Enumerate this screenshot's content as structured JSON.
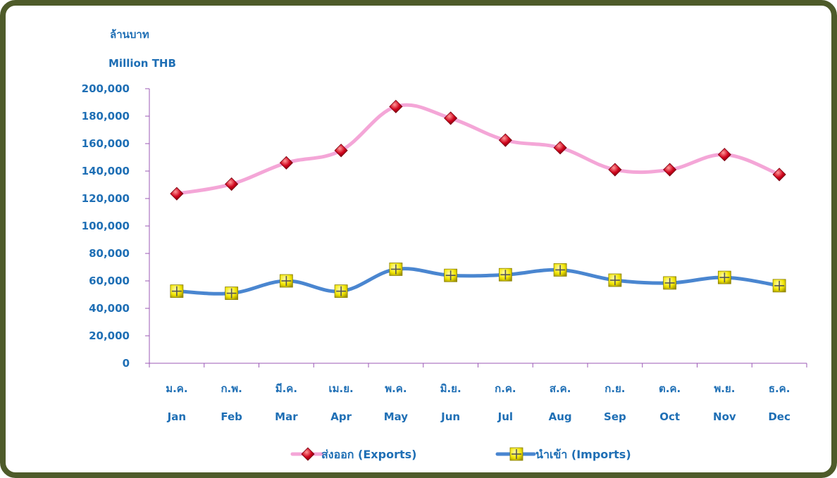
{
  "chart_data": {
    "type": "line",
    "title": "",
    "ylabel_th": "ล้านบาท",
    "ylabel_en": "Million THB",
    "xlabel": "",
    "ylim": [
      0,
      200000
    ],
    "ytick_step": 20000,
    "yticks": [
      "0",
      "20,000",
      "40,000",
      "60,000",
      "80,000",
      "100,000",
      "120,000",
      "140,000",
      "160,000",
      "180,000",
      "200,000"
    ],
    "categories_th": [
      "ม.ค.",
      "ก.พ.",
      "มี.ค.",
      "เม.ย.",
      "พ.ค.",
      "มิ.ย.",
      "ก.ค.",
      "ส.ค.",
      "ก.ย.",
      "ต.ค.",
      "พ.ย.",
      "ธ.ค."
    ],
    "categories": [
      "Jan",
      "Feb",
      "Mar",
      "Apr",
      "May",
      "Jun",
      "Jul",
      "Aug",
      "Sep",
      "Oct",
      "Nov",
      "Dec"
    ],
    "grid": false,
    "legend_position": "bottom",
    "series": [
      {
        "name": "ส่งออก (Exports)",
        "line_color": "#f4a6d7",
        "marker": "diamond",
        "marker_color": "#c8102e",
        "values": [
          123500,
          130500,
          146000,
          155000,
          187000,
          178500,
          162500,
          157000,
          141000,
          141000,
          152000,
          137500
        ]
      },
      {
        "name": "นำเข้า (Imports)",
        "line_color": "#4a86d0",
        "marker": "square",
        "marker_color": "#f2e600",
        "values": [
          52500,
          51000,
          60000,
          52500,
          68500,
          64000,
          64500,
          68000,
          60500,
          58500,
          62500,
          56500
        ]
      }
    ]
  }
}
